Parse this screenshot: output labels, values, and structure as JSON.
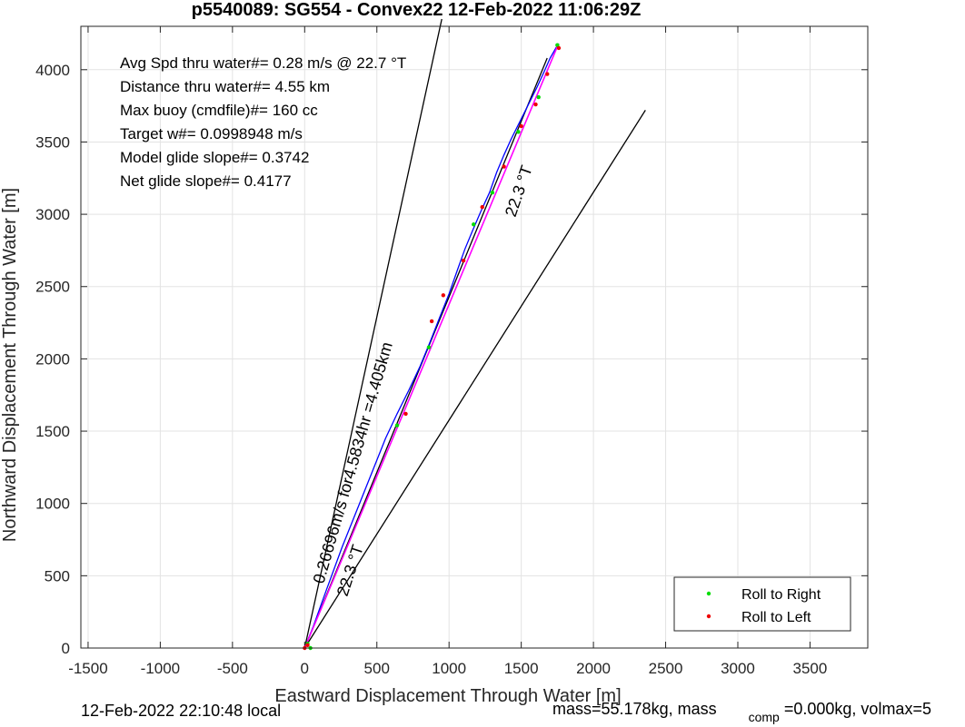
{
  "chart_data": {
    "type": "line",
    "title": "p5540089: SG554 - Convex22 12-Feb-2022 11:06:29Z",
    "xlabel": "Eastward Displacement Through Water [m]",
    "ylabel": "Northward Displacement Through Water [m]",
    "xlim": [
      -1550,
      3900
    ],
    "ylim": [
      0,
      4300
    ],
    "xticks": [
      -1500,
      -1000,
      -500,
      0,
      500,
      1000,
      1500,
      2000,
      2500,
      3000,
      3500
    ],
    "yticks": [
      0,
      500,
      1000,
      1500,
      2000,
      2500,
      3000,
      3500,
      4000
    ],
    "grid": true,
    "legend_position": "bottom-right",
    "legend": [
      {
        "label": "Roll to Right",
        "color": "#00dd00"
      },
      {
        "label": "Roll to Left",
        "color": "#ee0000"
      }
    ],
    "colors": {
      "track": "#0000ff",
      "fit": "#ff00ff",
      "ref_lines": "#000000",
      "roll_right": "#00dd00",
      "roll_left": "#ee0000"
    },
    "stats": [
      {
        "label": "Avg Spd thru water#=",
        "value": "0.28 m/s @  22.7         °T"
      },
      {
        "label": "Distance thru water#=",
        "value": "4.55 km"
      },
      {
        "label": "Max buoy (cmdfile)#=",
        "value": "160 cc"
      },
      {
        "label": "Target w#=",
        "value": "0.0998948 m/s"
      },
      {
        "label": "Model glide slope#=",
        "value": "0.3742"
      },
      {
        "label": "Net glide slope#=",
        "value": "0.4177"
      }
    ],
    "annotations": {
      "heading_upper": "22.3 °T",
      "heading_lower": "22.3 °T",
      "speed_line": "0.26696m/s for4.5834hr =4.405km"
    },
    "series": [
      {
        "kind": "track",
        "x": [
          0,
          60,
          150,
          260,
          380,
          480,
          560,
          640,
          720,
          800,
          870,
          940,
          1000,
          1060,
          1110,
          1160,
          1220,
          1280,
          1330,
          1380,
          1430,
          1490,
          1550,
          1610,
          1660,
          1700,
          1740,
          1760
        ],
        "y": [
          0,
          150,
          400,
          700,
          1000,
          1250,
          1450,
          1620,
          1780,
          1950,
          2120,
          2300,
          2450,
          2620,
          2760,
          2880,
          3020,
          3150,
          3290,
          3410,
          3520,
          3640,
          3760,
          3880,
          3990,
          4080,
          4150,
          4180
        ]
      },
      {
        "kind": "fit",
        "x": [
          0,
          1750
        ],
        "y": [
          0,
          4160
        ]
      },
      {
        "kind": "ref",
        "x": [
          0,
          950
        ],
        "y": [
          0,
          4350
        ]
      },
      {
        "kind": "ref",
        "x": [
          0,
          2360
        ],
        "y": [
          0,
          3720
        ]
      },
      {
        "kind": "ref",
        "x": [
          0,
          1680
        ],
        "y": [
          0,
          4080
        ]
      }
    ],
    "roll_right_points": {
      "x": [
        40,
        20,
        640,
        860,
        1170,
        1300,
        1480,
        1620,
        1750
      ],
      "y": [
        0,
        30,
        1540,
        2080,
        2930,
        3150,
        3570,
        3810,
        4170
      ]
    },
    "roll_left_points": {
      "x": [
        0,
        20,
        700,
        880,
        960,
        1100,
        1230,
        1380,
        1500,
        1600,
        1680,
        1760
      ],
      "y": [
        0,
        20,
        1620,
        2260,
        2440,
        2680,
        3050,
        3330,
        3610,
        3760,
        3970,
        4150
      ]
    }
  },
  "footer": {
    "left": "12-Feb-2022 22:10:48 local",
    "right_prefix": "mass=55.178kg, mass",
    "right_sub": "comp",
    "right_suffix": "=0.000kg, volmax=5"
  }
}
